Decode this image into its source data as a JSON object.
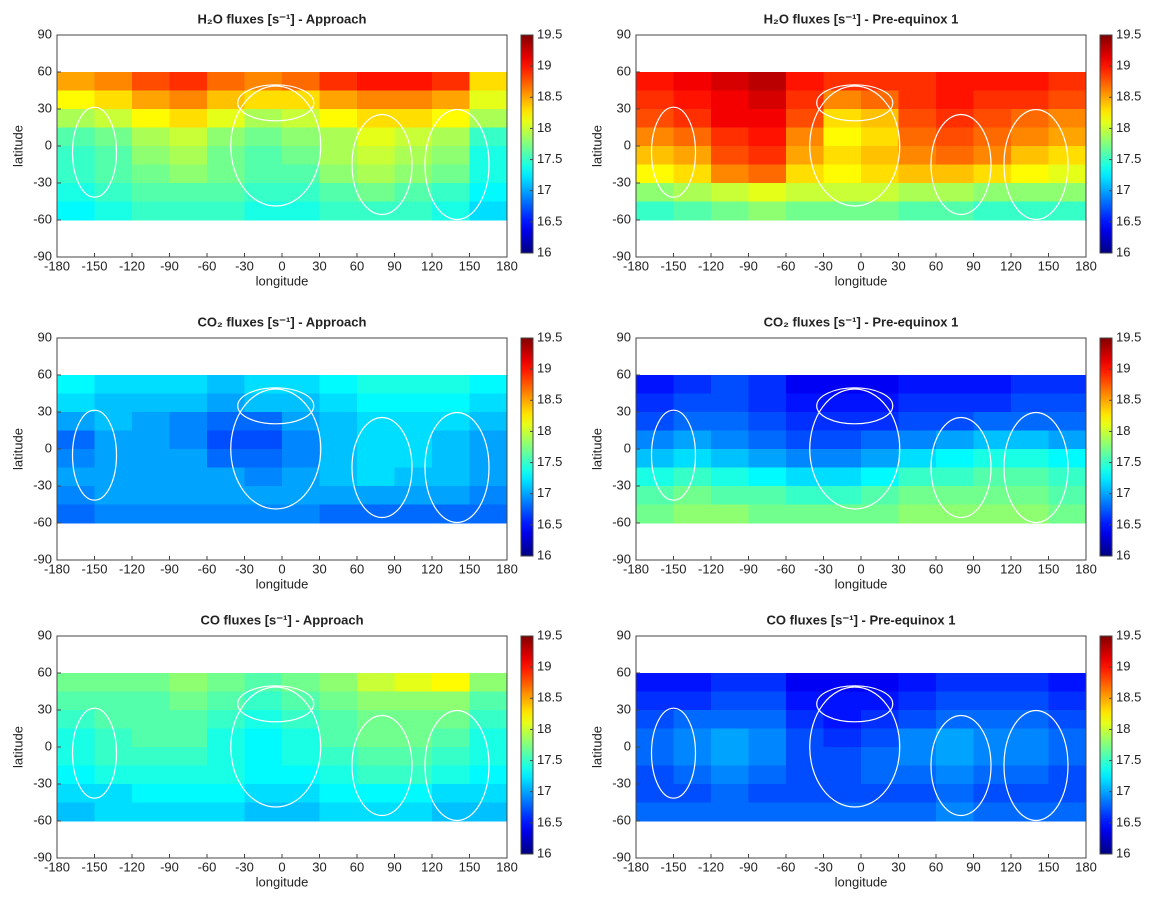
{
  "chart_data": [
    {
      "type": "heatmap",
      "title": "H₂O fluxes [s⁻¹] - Approach",
      "xlabel": "longitude",
      "ylabel": "latitude",
      "colormap": "jet",
      "x": [
        -165,
        -135,
        -105,
        -75,
        -45,
        -15,
        15,
        45,
        75,
        105,
        135,
        165
      ],
      "y": [
        52.5,
        37.5,
        22.5,
        7.5,
        -7.5,
        -22.5,
        -37.5,
        -52.5
      ],
      "values": [
        [
          18.5,
          18.6,
          18.8,
          18.9,
          18.7,
          18.6,
          18.7,
          18.9,
          19.0,
          19.0,
          18.9,
          18.3
        ],
        [
          18.2,
          18.3,
          18.5,
          18.6,
          18.4,
          18.3,
          18.3,
          18.5,
          18.6,
          18.6,
          18.5,
          18.1
        ],
        [
          17.9,
          18.0,
          18.2,
          18.3,
          18.1,
          17.9,
          18.0,
          18.2,
          18.3,
          18.3,
          18.2,
          17.9
        ],
        [
          17.6,
          17.7,
          17.9,
          18.0,
          17.8,
          17.7,
          17.8,
          17.9,
          18.1,
          18.0,
          17.9,
          17.5
        ],
        [
          17.5,
          17.6,
          17.8,
          17.9,
          17.7,
          17.6,
          17.7,
          17.9,
          18.0,
          17.9,
          17.8,
          17.4
        ],
        [
          17.5,
          17.6,
          17.7,
          17.8,
          17.7,
          17.6,
          17.6,
          17.8,
          17.9,
          17.8,
          17.7,
          17.4
        ],
        [
          17.4,
          17.5,
          17.6,
          17.6,
          17.6,
          17.5,
          17.5,
          17.6,
          17.7,
          17.6,
          17.5,
          17.3
        ],
        [
          17.3,
          17.4,
          17.5,
          17.5,
          17.5,
          17.4,
          17.4,
          17.5,
          17.5,
          17.5,
          17.4,
          17.2
        ]
      ],
      "xlim": [
        -180,
        180
      ],
      "xticks": [
        -180,
        -150,
        -120,
        -90,
        -60,
        -30,
        0,
        30,
        60,
        90,
        120,
        150,
        180
      ],
      "ylim": [
        -90,
        90
      ],
      "yticks": [
        -90,
        -60,
        -30,
        0,
        30,
        60,
        90
      ],
      "clim": [
        16,
        19.5
      ],
      "cticks": [
        16,
        16.5,
        17,
        17.5,
        18,
        18.5,
        19,
        19.5
      ]
    },
    {
      "type": "heatmap",
      "title": "H₂O fluxes [s⁻¹] - Pre-equinox 1",
      "xlabel": "longitude",
      "ylabel": "latitude",
      "colormap": "jet",
      "x": [
        -165,
        -135,
        -105,
        -75,
        -45,
        -15,
        15,
        45,
        75,
        105,
        135,
        165
      ],
      "y": [
        52.5,
        37.5,
        22.5,
        7.5,
        -7.5,
        -22.5,
        -37.5,
        -52.5
      ],
      "values": [
        [
          19.0,
          19.1,
          19.2,
          19.3,
          19.0,
          18.9,
          18.9,
          18.9,
          19.0,
          19.0,
          19.0,
          18.9
        ],
        [
          18.9,
          19.0,
          19.1,
          19.2,
          18.9,
          18.6,
          18.7,
          18.9,
          19.0,
          18.9,
          18.9,
          18.8
        ],
        [
          18.8,
          18.9,
          19.1,
          19.1,
          18.8,
          18.3,
          18.4,
          18.8,
          18.9,
          18.8,
          18.7,
          18.6
        ],
        [
          18.6,
          18.7,
          18.9,
          19.0,
          18.6,
          18.2,
          18.3,
          18.7,
          18.8,
          18.7,
          18.6,
          18.5
        ],
        [
          18.4,
          18.5,
          18.8,
          18.9,
          18.5,
          18.3,
          18.4,
          18.6,
          18.7,
          18.6,
          18.4,
          18.3
        ],
        [
          18.2,
          18.3,
          18.6,
          18.7,
          18.3,
          18.2,
          18.3,
          18.4,
          18.4,
          18.3,
          18.2,
          18.1
        ],
        [
          17.8,
          17.9,
          18.0,
          18.1,
          18.0,
          18.0,
          18.0,
          17.9,
          17.9,
          17.8,
          17.8,
          17.8
        ],
        [
          17.5,
          17.6,
          17.7,
          17.8,
          17.7,
          17.7,
          17.7,
          17.6,
          17.6,
          17.5,
          17.5,
          17.5
        ]
      ],
      "xlim": [
        -180,
        180
      ],
      "xticks": [
        -180,
        -150,
        -120,
        -90,
        -60,
        -30,
        0,
        30,
        60,
        90,
        120,
        150,
        180
      ],
      "ylim": [
        -90,
        90
      ],
      "yticks": [
        -90,
        -60,
        -30,
        0,
        30,
        60,
        90
      ],
      "clim": [
        16,
        19.5
      ],
      "cticks": [
        16,
        16.5,
        17,
        17.5,
        18,
        18.5,
        19,
        19.5
      ]
    },
    {
      "type": "heatmap",
      "title": "CO₂ fluxes [s⁻¹] - Approach",
      "xlabel": "longitude",
      "ylabel": "latitude",
      "colormap": "jet",
      "x": [
        -165,
        -135,
        -105,
        -75,
        -45,
        -15,
        15,
        45,
        75,
        105,
        135,
        165
      ],
      "y": [
        52.5,
        37.5,
        22.5,
        7.5,
        -7.5,
        -22.5,
        -37.5,
        -52.5
      ],
      "values": [
        [
          17.3,
          17.2,
          17.2,
          17.2,
          17.1,
          17.2,
          17.2,
          17.3,
          17.4,
          17.4,
          17.4,
          17.3
        ],
        [
          17.2,
          17.1,
          17.1,
          17.1,
          17.0,
          17.1,
          17.1,
          17.2,
          17.3,
          17.3,
          17.3,
          17.2
        ],
        [
          17.0,
          17.1,
          17.0,
          16.9,
          16.8,
          16.8,
          17.0,
          17.1,
          17.2,
          17.2,
          17.2,
          17.1
        ],
        [
          16.8,
          17.0,
          17.0,
          16.9,
          16.7,
          16.7,
          16.9,
          17.1,
          17.2,
          17.2,
          17.1,
          17.0
        ],
        [
          16.9,
          17.0,
          17.0,
          17.0,
          16.8,
          16.8,
          16.9,
          17.1,
          17.2,
          17.2,
          17.1,
          17.0
        ],
        [
          17.0,
          17.0,
          17.0,
          17.0,
          17.0,
          16.9,
          17.0,
          17.1,
          17.2,
          17.1,
          17.1,
          17.0
        ],
        [
          16.9,
          17.0,
          17.0,
          17.0,
          17.0,
          17.0,
          17.0,
          17.0,
          17.0,
          17.0,
          17.0,
          16.9
        ],
        [
          16.8,
          16.9,
          16.9,
          16.9,
          16.9,
          16.9,
          16.9,
          16.8,
          16.8,
          16.8,
          16.8,
          16.8
        ]
      ],
      "xlim": [
        -180,
        180
      ],
      "xticks": [
        -180,
        -150,
        -120,
        -90,
        -60,
        -30,
        0,
        30,
        60,
        90,
        120,
        150,
        180
      ],
      "ylim": [
        -90,
        90
      ],
      "yticks": [
        -90,
        -60,
        -30,
        0,
        30,
        60,
        90
      ],
      "clim": [
        16,
        19.5
      ],
      "cticks": [
        16,
        16.5,
        17,
        17.5,
        18,
        18.5,
        19,
        19.5
      ]
    },
    {
      "type": "heatmap",
      "title": "CO₂ fluxes [s⁻¹] - Pre-equinox 1",
      "xlabel": "longitude",
      "ylabel": "latitude",
      "colormap": "jet",
      "x": [
        -165,
        -135,
        -105,
        -75,
        -45,
        -15,
        15,
        45,
        75,
        105,
        135,
        165
      ],
      "y": [
        52.5,
        37.5,
        22.5,
        7.5,
        -7.5,
        -22.5,
        -37.5,
        -52.5
      ],
      "values": [
        [
          16.5,
          16.6,
          16.7,
          16.6,
          16.4,
          16.4,
          16.4,
          16.5,
          16.5,
          16.5,
          16.6,
          16.6
        ],
        [
          16.6,
          16.7,
          16.7,
          16.6,
          16.5,
          16.5,
          16.5,
          16.6,
          16.6,
          16.6,
          16.7,
          16.7
        ],
        [
          16.7,
          16.8,
          16.8,
          16.7,
          16.6,
          16.6,
          16.6,
          16.7,
          16.7,
          16.8,
          16.8,
          16.8
        ],
        [
          16.9,
          17.0,
          16.9,
          16.8,
          16.7,
          16.7,
          16.8,
          16.9,
          17.0,
          17.1,
          17.1,
          17.0
        ],
        [
          17.1,
          17.2,
          17.1,
          17.0,
          16.9,
          16.9,
          17.0,
          17.2,
          17.3,
          17.4,
          17.4,
          17.3
        ],
        [
          17.4,
          17.5,
          17.4,
          17.3,
          17.2,
          17.2,
          17.3,
          17.5,
          17.5,
          17.6,
          17.6,
          17.5
        ],
        [
          17.6,
          17.7,
          17.6,
          17.6,
          17.5,
          17.5,
          17.6,
          17.7,
          17.7,
          17.7,
          17.7,
          17.6
        ],
        [
          17.7,
          17.8,
          17.8,
          17.7,
          17.7,
          17.7,
          17.7,
          17.8,
          17.8,
          17.8,
          17.8,
          17.7
        ]
      ],
      "xlim": [
        -180,
        180
      ],
      "xticks": [
        -180,
        -150,
        -120,
        -90,
        -60,
        -30,
        0,
        30,
        60,
        90,
        120,
        150,
        180
      ],
      "ylim": [
        -90,
        90
      ],
      "yticks": [
        -90,
        -60,
        -30,
        0,
        30,
        60,
        90
      ],
      "clim": [
        16,
        19.5
      ],
      "cticks": [
        16,
        16.5,
        17,
        17.5,
        18,
        18.5,
        19,
        19.5
      ]
    },
    {
      "type": "heatmap",
      "title": "CO fluxes [s⁻¹] - Approach",
      "xlabel": "longitude",
      "ylabel": "latitude",
      "colormap": "jet",
      "x": [
        -165,
        -135,
        -105,
        -75,
        -45,
        -15,
        15,
        45,
        75,
        105,
        135,
        165
      ],
      "y": [
        52.5,
        37.5,
        22.5,
        7.5,
        -7.5,
        -22.5,
        -37.5,
        -52.5
      ],
      "values": [
        [
          17.7,
          17.7,
          17.7,
          17.8,
          17.7,
          17.6,
          17.7,
          17.8,
          18.0,
          18.1,
          18.2,
          17.8
        ],
        [
          17.6,
          17.6,
          17.6,
          17.7,
          17.6,
          17.5,
          17.6,
          17.7,
          17.8,
          17.8,
          17.8,
          17.6
        ],
        [
          17.5,
          17.6,
          17.6,
          17.6,
          17.5,
          17.4,
          17.5,
          17.6,
          17.7,
          17.7,
          17.7,
          17.5
        ],
        [
          17.4,
          17.5,
          17.6,
          17.6,
          17.4,
          17.3,
          17.4,
          17.6,
          17.7,
          17.7,
          17.6,
          17.4
        ],
        [
          17.4,
          17.5,
          17.5,
          17.5,
          17.4,
          17.3,
          17.4,
          17.5,
          17.6,
          17.6,
          17.5,
          17.4
        ],
        [
          17.3,
          17.4,
          17.4,
          17.4,
          17.4,
          17.3,
          17.3,
          17.4,
          17.5,
          17.5,
          17.4,
          17.3
        ],
        [
          17.2,
          17.2,
          17.3,
          17.3,
          17.3,
          17.2,
          17.2,
          17.3,
          17.3,
          17.3,
          17.2,
          17.2
        ],
        [
          17.1,
          17.2,
          17.2,
          17.2,
          17.2,
          17.1,
          17.1,
          17.2,
          17.2,
          17.2,
          17.1,
          17.1
        ]
      ],
      "xlim": [
        -180,
        180
      ],
      "xticks": [
        -180,
        -150,
        -120,
        -90,
        -60,
        -30,
        0,
        30,
        60,
        90,
        120,
        150,
        180
      ],
      "ylim": [
        -90,
        90
      ],
      "yticks": [
        -90,
        -60,
        -30,
        0,
        30,
        60,
        90
      ],
      "clim": [
        16,
        19.5
      ],
      "cticks": [
        16,
        16.5,
        17,
        17.5,
        18,
        18.5,
        19,
        19.5
      ]
    },
    {
      "type": "heatmap",
      "title": "CO fluxes [s⁻¹] - Pre-equinox 1",
      "xlabel": "longitude",
      "ylabel": "latitude",
      "colormap": "jet",
      "x": [
        -165,
        -135,
        -105,
        -75,
        -45,
        -15,
        15,
        45,
        75,
        105,
        135,
        165
      ],
      "y": [
        52.5,
        37.5,
        22.5,
        7.5,
        -7.5,
        -22.5,
        -37.5,
        -52.5
      ],
      "values": [
        [
          16.5,
          16.5,
          16.6,
          16.6,
          16.4,
          16.4,
          16.4,
          16.5,
          16.6,
          16.6,
          16.6,
          16.5
        ],
        [
          16.6,
          16.6,
          16.7,
          16.7,
          16.5,
          16.5,
          16.5,
          16.6,
          16.7,
          16.7,
          16.7,
          16.6
        ],
        [
          16.7,
          16.8,
          16.8,
          16.8,
          16.6,
          16.5,
          16.6,
          16.7,
          16.8,
          16.8,
          16.8,
          16.7
        ],
        [
          16.8,
          16.9,
          17.0,
          16.9,
          16.7,
          16.6,
          16.7,
          16.9,
          17.0,
          16.9,
          16.9,
          16.8
        ],
        [
          16.8,
          16.9,
          17.0,
          16.9,
          16.7,
          16.7,
          16.8,
          16.9,
          17.0,
          16.9,
          16.9,
          16.8
        ],
        [
          16.7,
          16.8,
          16.9,
          16.8,
          16.7,
          16.7,
          16.8,
          16.8,
          16.9,
          16.8,
          16.8,
          16.7
        ],
        [
          16.7,
          16.7,
          16.8,
          16.7,
          16.7,
          16.7,
          16.7,
          16.7,
          16.8,
          16.7,
          16.7,
          16.7
        ],
        [
          16.8,
          16.8,
          16.8,
          16.8,
          16.8,
          16.8,
          16.8,
          16.8,
          16.9,
          16.8,
          16.8,
          16.8
        ]
      ],
      "xlim": [
        -180,
        180
      ],
      "xticks": [
        -180,
        -150,
        -120,
        -90,
        -60,
        -30,
        0,
        30,
        60,
        90,
        120,
        150,
        180
      ],
      "ylim": [
        -90,
        90
      ],
      "yticks": [
        -90,
        -60,
        -30,
        0,
        30,
        60,
        90
      ],
      "clim": [
        16,
        19.5
      ],
      "cticks": [
        16,
        16.5,
        17,
        17.5,
        18,
        18.5,
        19,
        19.5
      ]
    }
  ]
}
